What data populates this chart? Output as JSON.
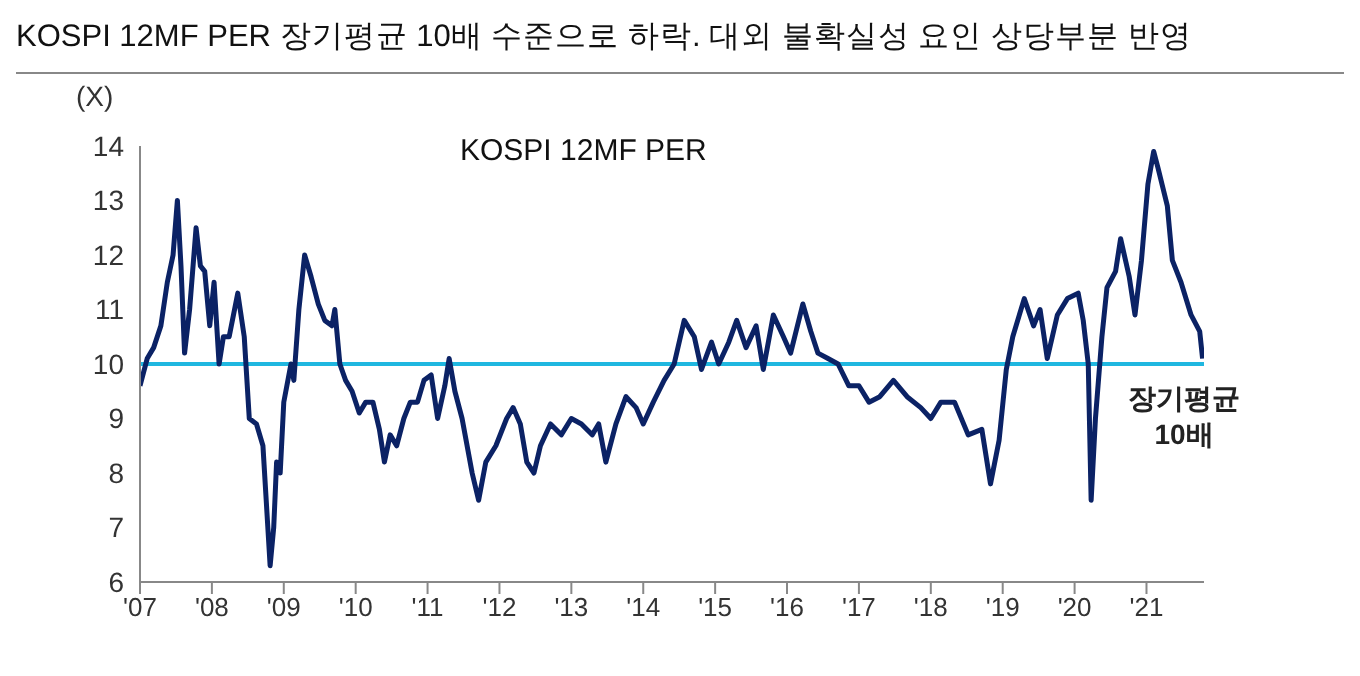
{
  "chart_data": {
    "type": "line",
    "title": "KOSPI 12MF PER 장기평균 10배 수준으로 하락. 대외 불확실성 요인 상당부분 반영",
    "subtitle": "KOSPI 12MF PER",
    "ylabel": "(X)",
    "series": [
      {
        "color": "#0b2265",
        "x": [
          2007.0,
          2007.1,
          2007.19,
          2007.29,
          2007.38,
          2007.46,
          2007.52,
          2007.57,
          2007.62,
          2007.69,
          2007.78,
          2007.84,
          2007.9,
          2007.97,
          2008.03,
          2008.1,
          2008.16,
          2008.24,
          2008.36,
          2008.45,
          2008.52,
          2008.62,
          2008.71,
          2008.81,
          2008.86,
          2008.9,
          2008.95,
          2009.0,
          2009.1,
          2009.14,
          2009.21,
          2009.29,
          2009.38,
          2009.48,
          2009.57,
          2009.67,
          2009.71,
          2009.78,
          2009.86,
          2009.95,
          2010.05,
          2010.14,
          2010.24,
          2010.33,
          2010.4,
          2010.48,
          2010.57,
          2010.67,
          2010.76,
          2010.86,
          2010.95,
          2011.05,
          2011.14,
          2011.24,
          2011.3,
          2011.38,
          2011.48,
          2011.62,
          2011.71,
          2011.81,
          2011.95,
          2012.1,
          2012.19,
          2012.29,
          2012.38,
          2012.48,
          2012.57,
          2012.71,
          2012.86,
          2013.0,
          2013.14,
          2013.29,
          2013.38,
          2013.48,
          2013.62,
          2013.76,
          2013.9,
          2014.0,
          2014.14,
          2014.29,
          2014.43,
          2014.57,
          2014.71,
          2014.81,
          2014.95,
          2015.05,
          2015.19,
          2015.3,
          2015.43,
          2015.57,
          2015.67,
          2015.81,
          2015.95,
          2016.05,
          2016.22,
          2016.33,
          2016.43,
          2016.57,
          2016.71,
          2016.86,
          2017.0,
          2017.14,
          2017.29,
          2017.48,
          2017.67,
          2017.86,
          2018.0,
          2018.14,
          2018.33,
          2018.52,
          2018.71,
          2018.83,
          2018.95,
          2019.05,
          2019.14,
          2019.3,
          2019.43,
          2019.52,
          2019.62,
          2019.76,
          2019.9,
          2020.05,
          2020.12,
          2020.19,
          2020.23,
          2020.29,
          2020.38,
          2020.45,
          2020.57,
          2020.64,
          2020.76,
          2020.84,
          2020.93,
          2021.02,
          2021.1,
          2021.16,
          2021.29,
          2021.36,
          2021.48,
          2021.62,
          2021.74,
          2021.78
        ],
        "values": [
          9.6,
          10.1,
          10.3,
          10.7,
          11.5,
          12.0,
          13.0,
          11.8,
          10.2,
          11.0,
          12.5,
          11.8,
          11.7,
          10.7,
          11.5,
          10.0,
          10.5,
          10.5,
          11.3,
          10.5,
          9.0,
          8.9,
          8.5,
          6.3,
          7.0,
          8.2,
          8.0,
          9.3,
          10.0,
          9.7,
          11.0,
          12.0,
          11.6,
          11.1,
          10.8,
          10.7,
          11.0,
          10.0,
          9.7,
          9.5,
          9.1,
          9.3,
          9.3,
          8.8,
          8.2,
          8.7,
          8.5,
          9.0,
          9.3,
          9.3,
          9.7,
          9.8,
          9.0,
          9.6,
          10.1,
          9.5,
          9.0,
          8.0,
          7.5,
          8.2,
          8.5,
          9.0,
          9.2,
          8.9,
          8.2,
          8.0,
          8.5,
          8.9,
          8.7,
          9.0,
          8.9,
          8.7,
          8.9,
          8.2,
          8.9,
          9.4,
          9.2,
          8.9,
          9.3,
          9.7,
          10.0,
          10.8,
          10.5,
          9.9,
          10.4,
          10.0,
          10.4,
          10.8,
          10.3,
          10.7,
          9.9,
          10.9,
          10.5,
          10.2,
          11.1,
          10.6,
          10.2,
          10.1,
          10.0,
          9.6,
          9.6,
          9.3,
          9.4,
          9.7,
          9.4,
          9.2,
          9.0,
          9.3,
          9.3,
          8.7,
          8.8,
          7.8,
          8.6,
          9.9,
          10.5,
          11.2,
          10.7,
          11.0,
          10.1,
          10.9,
          11.2,
          11.3,
          10.8,
          10.0,
          7.5,
          9.0,
          10.5,
          11.4,
          11.7,
          12.3,
          11.6,
          10.9,
          11.9,
          13.3,
          13.9,
          13.6,
          12.9,
          11.9,
          11.5,
          10.9,
          10.6,
          10.1
        ]
      }
    ],
    "xlim": [
      2007,
      2021.8
    ],
    "xticks": [
      {
        "value": 2007,
        "label": "'07"
      },
      {
        "value": 2008,
        "label": "'08"
      },
      {
        "value": 2009,
        "label": "'09"
      },
      {
        "value": 2010,
        "label": "'10"
      },
      {
        "value": 2011,
        "label": "'11"
      },
      {
        "value": 2012,
        "label": "'12"
      },
      {
        "value": 2013,
        "label": "'13"
      },
      {
        "value": 2014,
        "label": "'14"
      },
      {
        "value": 2015,
        "label": "'15"
      },
      {
        "value": 2016,
        "label": "'16"
      },
      {
        "value": 2017,
        "label": "'17"
      },
      {
        "value": 2018,
        "label": "'18"
      },
      {
        "value": 2019,
        "label": "'19"
      },
      {
        "value": 2020,
        "label": "'20"
      },
      {
        "value": 2021,
        "label": "'21"
      }
    ],
    "ylim": [
      6,
      14
    ],
    "yticks": [
      6,
      7,
      8,
      9,
      10,
      11,
      12,
      13,
      14
    ],
    "ref_lines": [
      {
        "axis": "y",
        "value": 10,
        "label": "장기평균 10배",
        "color": "#1fb7e0"
      }
    ],
    "grid": false,
    "legend": false
  }
}
